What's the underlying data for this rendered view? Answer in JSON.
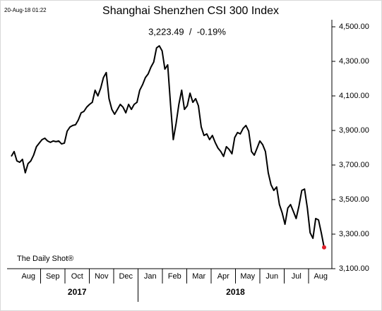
{
  "chart_data": {
    "type": "line",
    "timestamp": "20-Aug-18 01:22",
    "title": "Shanghai Shenzhen CSI 300 Index",
    "subtitle": "3,223.49  /  -0.19%",
    "source": "The Daily Shot®",
    "months": [
      "Aug",
      "Sep",
      "Oct",
      "Nov",
      "Dec",
      "Jan",
      "Feb",
      "Mar",
      "Apr",
      "May",
      "Jun",
      "Jul",
      "Aug"
    ],
    "years": [
      "2017",
      "2018"
    ],
    "values": [
      3750,
      3778,
      3724,
      3716,
      3733,
      3655,
      3708,
      3724,
      3757,
      3806,
      3827,
      3847,
      3855,
      3839,
      3831,
      3839,
      3835,
      3839,
      3822,
      3827,
      3896,
      3920,
      3929,
      3933,
      3961,
      4002,
      4010,
      4035,
      4051,
      4063,
      4133,
      4100,
      4145,
      4206,
      4235,
      4084,
      4022,
      3994,
      4022,
      4051,
      4035,
      4002,
      4051,
      4022,
      4051,
      4063,
      4133,
      4165,
      4206,
      4227,
      4267,
      4296,
      4378,
      4390,
      4361,
      4255,
      4280,
      4051,
      3847,
      3941,
      4051,
      4133,
      4022,
      4043,
      4116,
      4063,
      4084,
      4043,
      3920,
      3871,
      3880,
      3847,
      3871,
      3831,
      3798,
      3778,
      3750,
      3806,
      3790,
      3765,
      3859,
      3888,
      3880,
      3912,
      3929,
      3896,
      3778,
      3757,
      3798,
      3839,
      3818,
      3778,
      3655,
      3586,
      3553,
      3573,
      3471,
      3422,
      3357,
      3451,
      3471,
      3431,
      3390,
      3463,
      3553,
      3561,
      3451,
      3308,
      3276,
      3390,
      3382,
      3308,
      3223.49
    ],
    "color": "#000000",
    "last_point_color": "#e0202a",
    "ylim": [
      3100,
      4500
    ],
    "yticks": [
      {
        "value": 3100,
        "label": "3,100.00"
      },
      {
        "value": 3300,
        "label": "3,300.00"
      },
      {
        "value": 3500,
        "label": "3,500.00"
      },
      {
        "value": 3700,
        "label": "3,700.00"
      },
      {
        "value": 3900,
        "label": "3,900.00"
      },
      {
        "value": 4100,
        "label": "4,100.00"
      },
      {
        "value": 4300,
        "label": "4,300.00"
      },
      {
        "value": 4500,
        "label": "4,500.00"
      }
    ]
  }
}
